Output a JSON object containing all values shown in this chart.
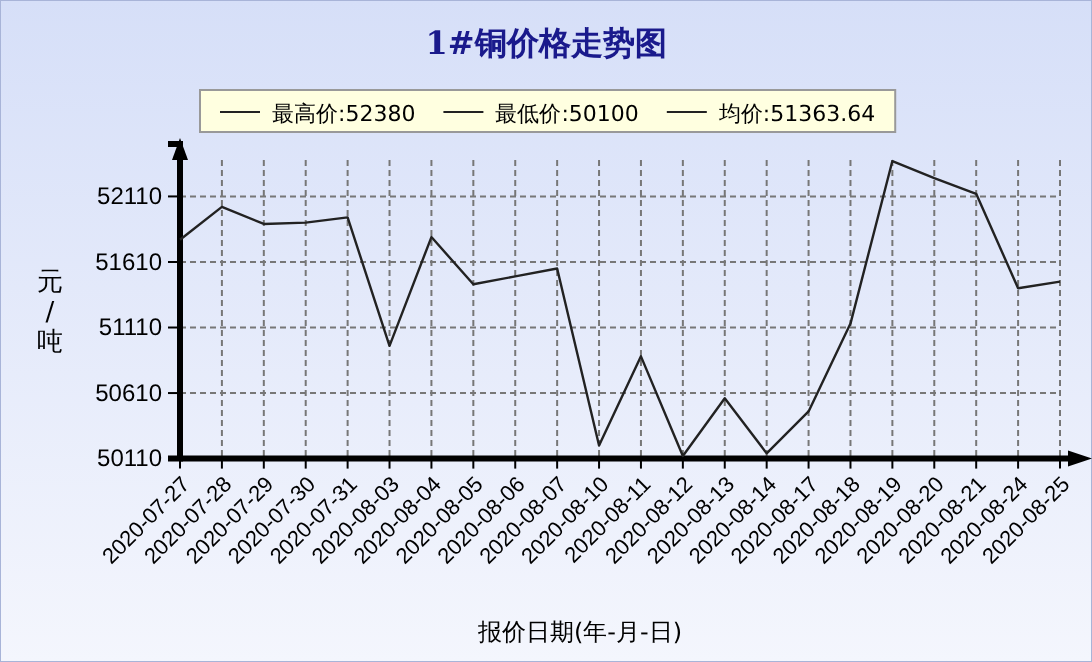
{
  "chart_data": {
    "type": "line",
    "title": "1#铜价格走势图",
    "xlabel": "报价日期(年-月-日)",
    "ylabel": "元/吨",
    "annotations": [
      "最高价:52380",
      "最低价:50100",
      "均价:51363.64"
    ],
    "categories": [
      "2020-07-27",
      "2020-07-28",
      "2020-07-29",
      "2020-07-30",
      "2020-07-31",
      "2020-08-03",
      "2020-08-04",
      "2020-08-05",
      "2020-08-06",
      "2020-08-07",
      "2020-08-10",
      "2020-08-11",
      "2020-08-12",
      "2020-08-13",
      "2020-08-14",
      "2020-08-17",
      "2020-08-18",
      "2020-08-19",
      "2020-08-20",
      "2020-08-21",
      "2020-08-24",
      "2020-08-25"
    ],
    "series": [
      {
        "color": "#222222",
        "values": [
          51780,
          52030,
          51900,
          51910,
          51950,
          50970,
          51800,
          51440,
          51500,
          51560,
          50210,
          50890,
          50130,
          50570,
          50150,
          50470,
          51140,
          52380,
          52250,
          52130,
          51410,
          51460
        ]
      }
    ],
    "ylim": [
      50110,
      52510
    ],
    "yticks": [
      50110,
      50610,
      51110,
      51610,
      52110
    ],
    "grid": true,
    "marker": "none",
    "line_style": "solid"
  }
}
